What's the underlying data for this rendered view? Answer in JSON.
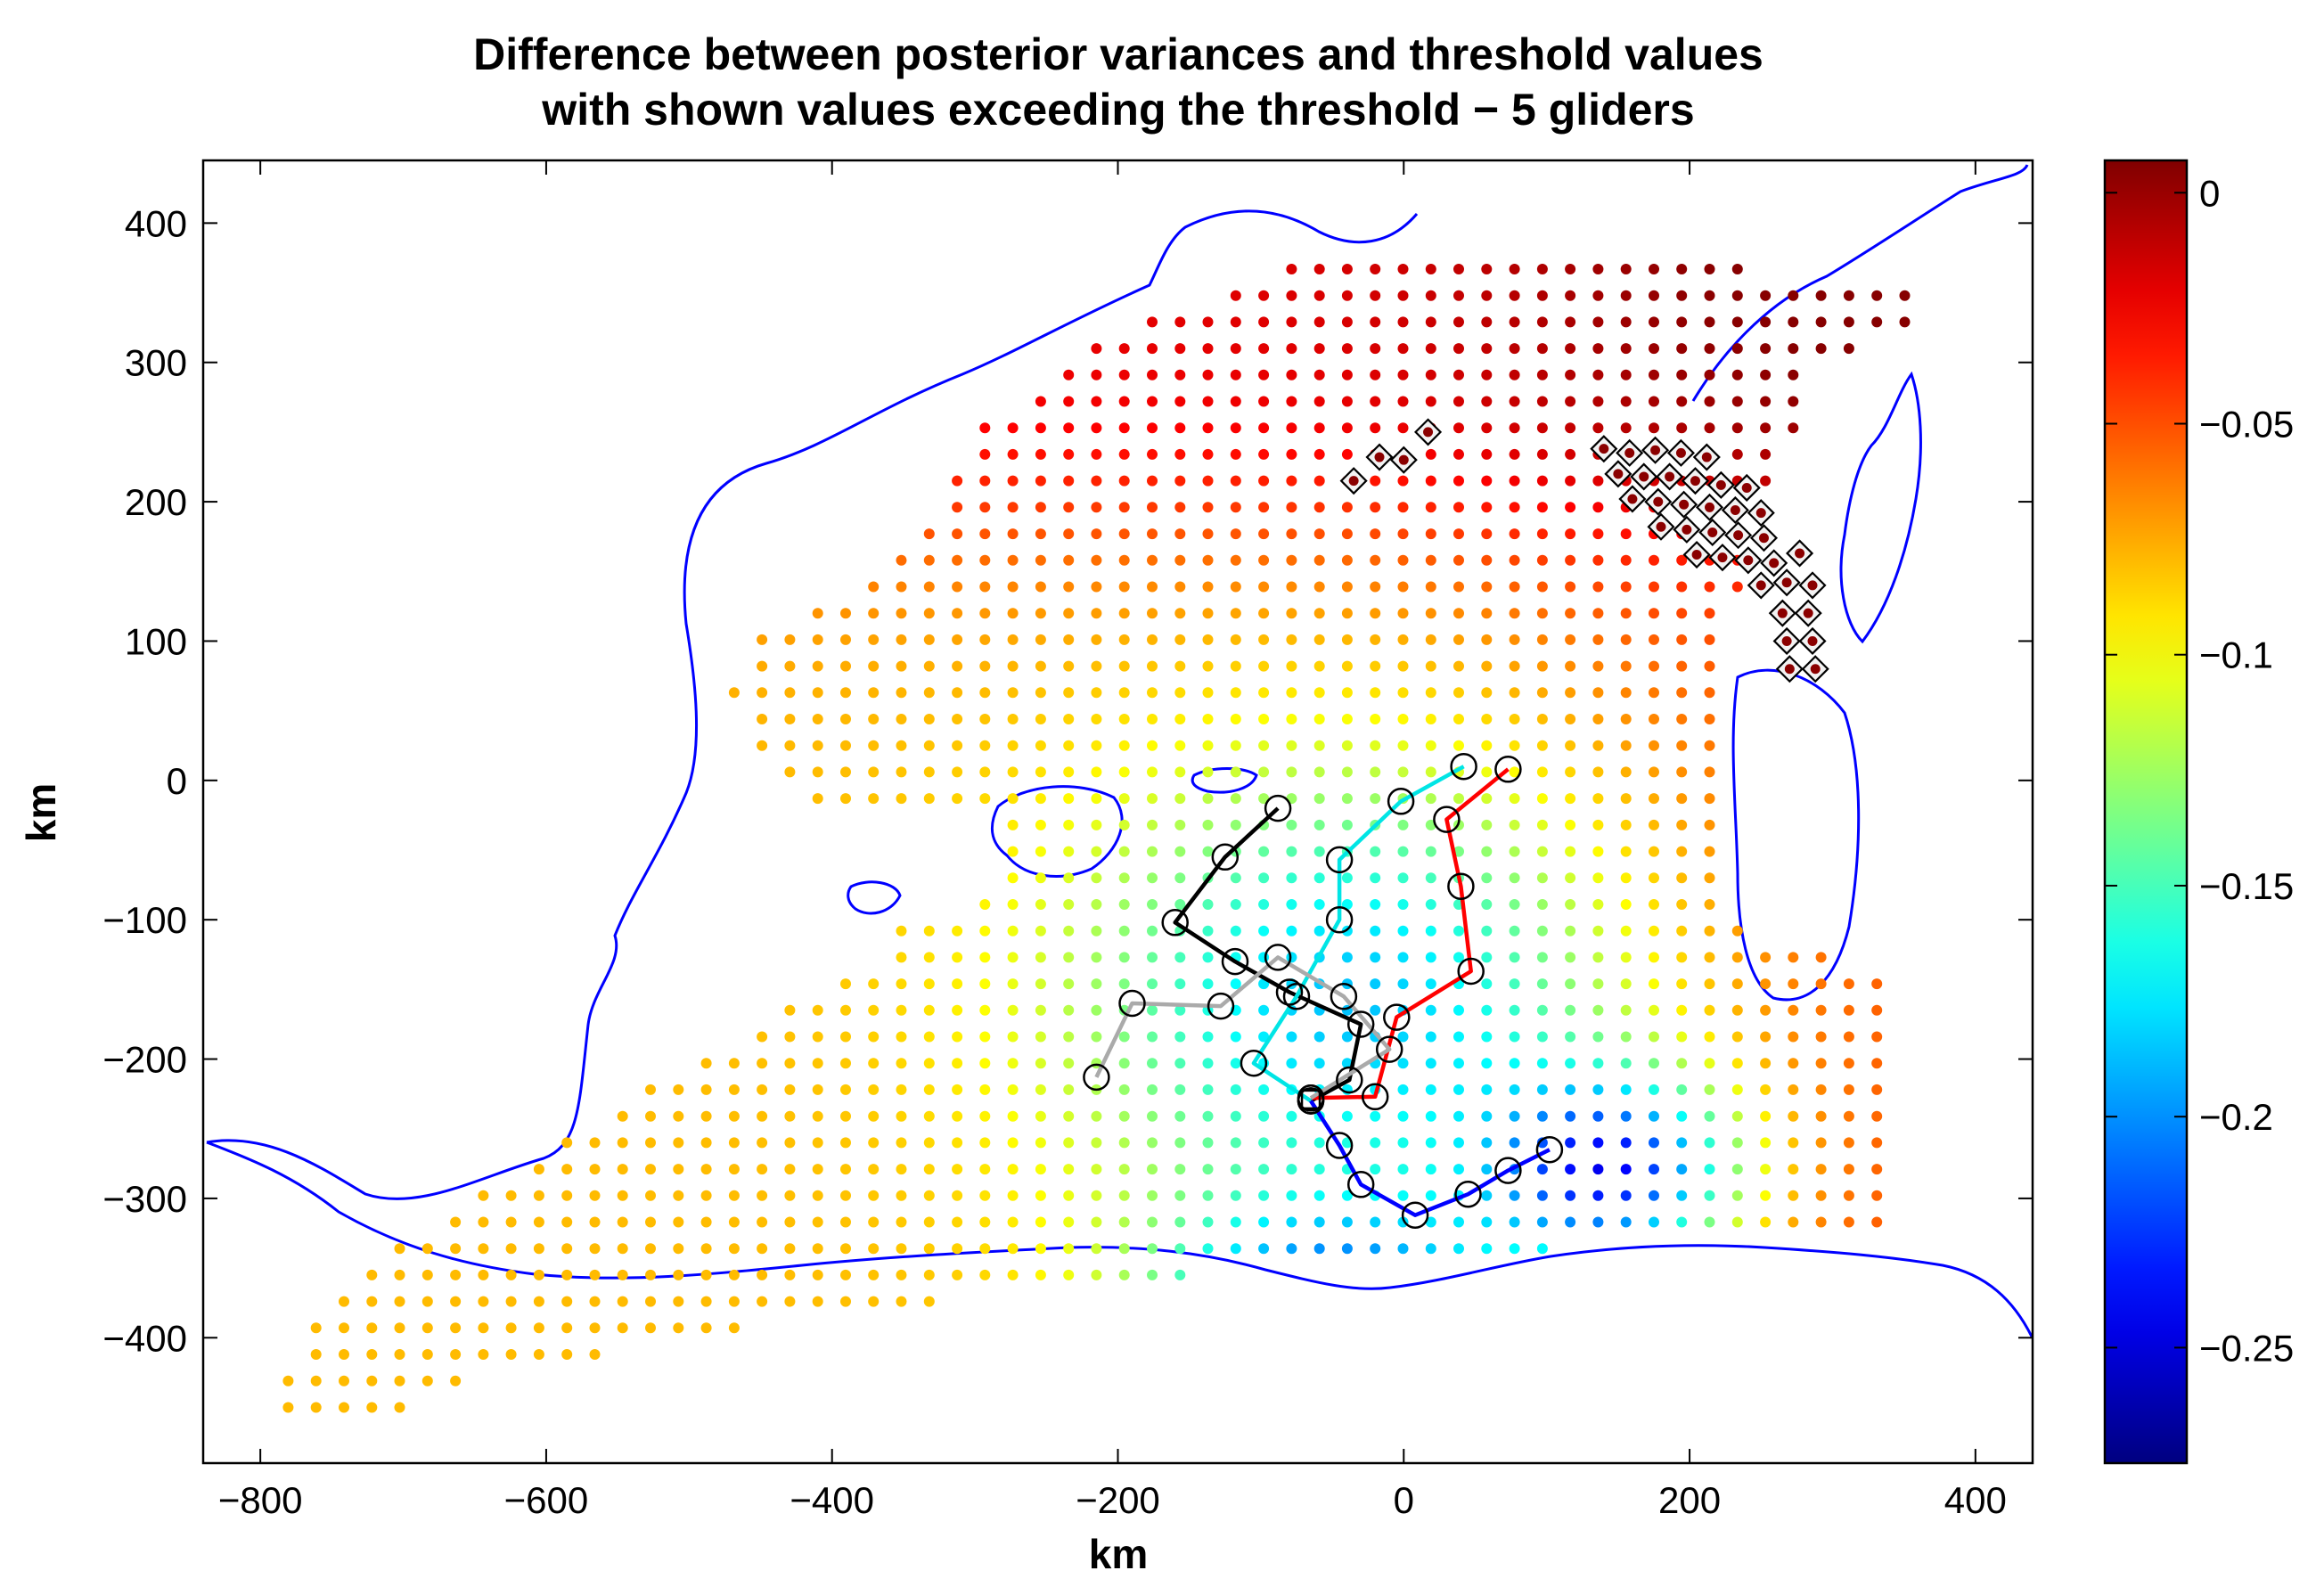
{
  "chart_data": {
    "type": "scatter",
    "title_lines": [
      "Difference between posterior variances and threshold values",
      "with shown values exceeding the threshold − 5 gliders"
    ],
    "xlabel": "km",
    "ylabel": "km",
    "xlim": [
      -840,
      440
    ],
    "ylim": [
      -490,
      445
    ],
    "xticks": [
      {
        "value": -800,
        "label": "−800"
      },
      {
        "value": -600,
        "label": "−600"
      },
      {
        "value": -400,
        "label": "−400"
      },
      {
        "value": -200,
        "label": "−200"
      },
      {
        "value": 0,
        "label": "0"
      },
      {
        "value": 200,
        "label": "200"
      },
      {
        "value": 400,
        "label": "400"
      }
    ],
    "yticks": [
      {
        "value": 400,
        "label": "400"
      },
      {
        "value": 300,
        "label": "300"
      },
      {
        "value": 200,
        "label": "200"
      },
      {
        "value": 100,
        "label": "100"
      },
      {
        "value": 0,
        "label": "0"
      },
      {
        "value": -100,
        "label": "−100"
      },
      {
        "value": -200,
        "label": "−200"
      },
      {
        "value": -300,
        "label": "−300"
      },
      {
        "value": -400,
        "label": "−400"
      }
    ],
    "grid": false,
    "colorbar": {
      "colormap": "jet",
      "range": [
        -0.275,
        0.007
      ],
      "ticks": [
        {
          "value": 0,
          "label": "0"
        },
        {
          "value": -0.05,
          "label": "−0.05"
        },
        {
          "value": -0.1,
          "label": "−0.1"
        },
        {
          "value": -0.15,
          "label": "−0.15"
        },
        {
          "value": -0.2,
          "label": "−0.2"
        },
        {
          "value": -0.25,
          "label": "−0.25"
        }
      ]
    },
    "grid_points": {
      "spacing_x": 19.5,
      "spacing_y": 19,
      "value_model": "estimated field: near 0 in the north-east, about -0.03 in the west, -0.1 to -0.16 near the glider tracks, minimum about -0.24 around (150, -300)"
    },
    "exceeding_points": [
      [
        -35,
        215
      ],
      [
        -17,
        232
      ],
      [
        0,
        230
      ],
      [
        17,
        250
      ],
      [
        140,
        238
      ],
      [
        158,
        235
      ],
      [
        176,
        237
      ],
      [
        194,
        235
      ],
      [
        212,
        232
      ],
      [
        150,
        220
      ],
      [
        168,
        218
      ],
      [
        186,
        218
      ],
      [
        204,
        215
      ],
      [
        222,
        212
      ],
      [
        240,
        210
      ],
      [
        160,
        202
      ],
      [
        178,
        200
      ],
      [
        196,
        198
      ],
      [
        214,
        196
      ],
      [
        232,
        194
      ],
      [
        250,
        192
      ],
      [
        180,
        182
      ],
      [
        198,
        180
      ],
      [
        216,
        178
      ],
      [
        234,
        176
      ],
      [
        252,
        174
      ],
      [
        205,
        162
      ],
      [
        223,
        160
      ],
      [
        241,
        158
      ],
      [
        259,
        156
      ],
      [
        277,
        163
      ],
      [
        250,
        140
      ],
      [
        268,
        142
      ],
      [
        286,
        140
      ],
      [
        265,
        120
      ],
      [
        283,
        120
      ],
      [
        268,
        100
      ],
      [
        286,
        100
      ],
      [
        270,
        80
      ],
      [
        288,
        80
      ]
    ],
    "glider_tracks": [
      {
        "color": "#000000",
        "points": [
          [
            -88,
            -20
          ],
          [
            -125,
            -55
          ],
          [
            -160,
            -102
          ],
          [
            -118,
            -130
          ],
          [
            -80,
            -152
          ],
          [
            -30,
            -175
          ],
          [
            -38,
            -215
          ],
          [
            -65,
            -230
          ]
        ]
      },
      {
        "color": "#ff0000",
        "points": [
          [
            73,
            8
          ],
          [
            30,
            -28
          ],
          [
            40,
            -76
          ],
          [
            47,
            -137
          ],
          [
            -5,
            -170
          ],
          [
            -20,
            -227
          ],
          [
            -65,
            -228
          ]
        ]
      },
      {
        "color": "#00e5e5",
        "points": [
          [
            42,
            10
          ],
          [
            -2,
            -15
          ],
          [
            -45,
            -57
          ],
          [
            -45,
            -100
          ],
          [
            -75,
            -155
          ],
          [
            -105,
            -203
          ],
          [
            -65,
            -230
          ]
        ]
      },
      {
        "color": "#aaaaaa",
        "points": [
          [
            -215,
            -213
          ],
          [
            -190,
            -160
          ],
          [
            -128,
            -162
          ],
          [
            -88,
            -127
          ],
          [
            -42,
            -155
          ],
          [
            -10,
            -193
          ],
          [
            -65,
            -228
          ]
        ]
      },
      {
        "color": "#0000ff",
        "points": [
          [
            -65,
            -230
          ],
          [
            -45,
            -262
          ],
          [
            -30,
            -290
          ],
          [
            8,
            -312
          ],
          [
            45,
            -297
          ],
          [
            73,
            -280
          ],
          [
            102,
            -265
          ]
        ]
      }
    ],
    "track_start_marker": [
      -65,
      -229
    ]
  }
}
